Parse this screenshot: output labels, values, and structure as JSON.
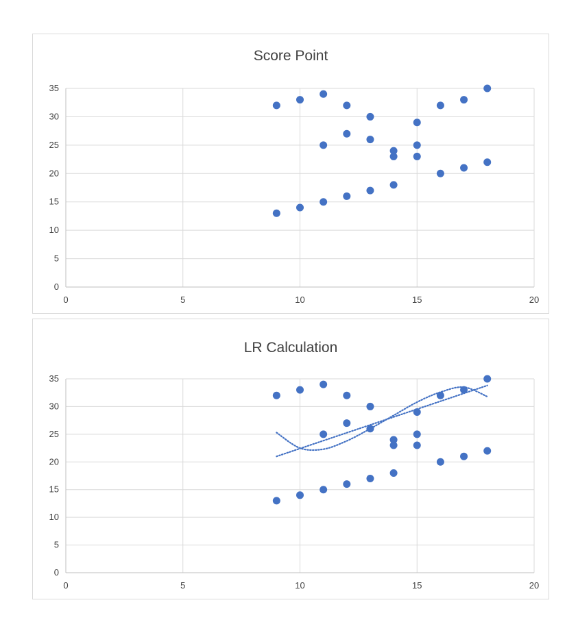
{
  "chart_data": [
    {
      "type": "scatter",
      "title": "Score Point",
      "xlabel": "",
      "ylabel": "",
      "xlim": [
        0,
        20
      ],
      "ylim": [
        0,
        35
      ],
      "xticks": [
        0,
        5,
        10,
        15,
        20
      ],
      "yticks": [
        0,
        5,
        10,
        15,
        20,
        25,
        30,
        35
      ],
      "grid": true,
      "legend": "none",
      "marker_color": "#4472c4",
      "series": [
        {
          "points": [
            [
              9,
              32
            ],
            [
              10,
              33
            ],
            [
              11,
              34
            ],
            [
              12,
              32
            ],
            [
              13,
              30
            ],
            [
              14,
              24
            ],
            [
              15,
              29
            ],
            [
              16,
              32
            ],
            [
              17,
              33
            ],
            [
              18,
              35
            ],
            [
              11,
              25
            ],
            [
              12,
              27
            ],
            [
              13,
              26
            ],
            [
              14,
              23
            ],
            [
              15,
              25
            ],
            [
              15,
              23
            ],
            [
              9,
              13
            ],
            [
              10,
              14
            ],
            [
              11,
              15
            ],
            [
              12,
              16
            ],
            [
              13,
              17
            ],
            [
              14,
              18
            ],
            [
              16,
              20
            ],
            [
              17,
              21
            ],
            [
              18,
              22
            ]
          ]
        }
      ]
    },
    {
      "type": "scatter",
      "title": "LR Calculation",
      "xlabel": "",
      "ylabel": "",
      "xlim": [
        0,
        20
      ],
      "ylim": [
        0,
        35
      ],
      "xticks": [
        0,
        5,
        10,
        15,
        20
      ],
      "yticks": [
        0,
        5,
        10,
        15,
        20,
        25,
        30,
        35
      ],
      "grid": true,
      "legend": "none",
      "marker_color": "#4472c4",
      "series": [
        {
          "points": [
            [
              9,
              32
            ],
            [
              10,
              33
            ],
            [
              11,
              34
            ],
            [
              12,
              32
            ],
            [
              13,
              30
            ],
            [
              14,
              24
            ],
            [
              15,
              29
            ],
            [
              16,
              32
            ],
            [
              17,
              33
            ],
            [
              18,
              35
            ],
            [
              11,
              25
            ],
            [
              12,
              27
            ],
            [
              13,
              26
            ],
            [
              14,
              23
            ],
            [
              15,
              25
            ],
            [
              15,
              23
            ],
            [
              9,
              13
            ],
            [
              10,
              14
            ],
            [
              11,
              15
            ],
            [
              12,
              16
            ],
            [
              13,
              17
            ],
            [
              14,
              18
            ],
            [
              16,
              20
            ],
            [
              17,
              21
            ],
            [
              18,
              22
            ]
          ]
        }
      ],
      "trendlines": [
        {
          "kind": "linear",
          "style": "dotted",
          "points": [
            [
              9,
              21
            ],
            [
              18,
              33.8
            ]
          ]
        },
        {
          "kind": "polynomial",
          "style": "dotted",
          "points": [
            [
              9,
              25.3
            ],
            [
              10,
              22.5
            ],
            [
              11,
              22.3
            ],
            [
              12,
              23.8
            ],
            [
              13,
              26
            ],
            [
              14,
              28.4
            ],
            [
              15,
              30.8
            ],
            [
              16,
              32.6
            ],
            [
              17,
              33.5
            ],
            [
              18,
              31.8
            ]
          ]
        }
      ]
    }
  ]
}
